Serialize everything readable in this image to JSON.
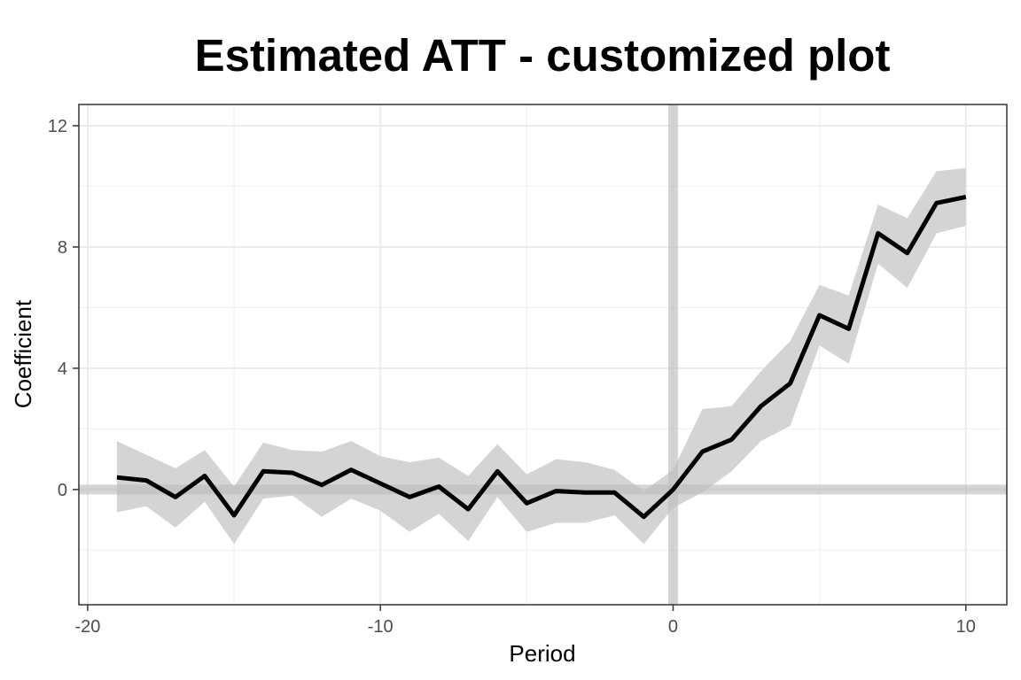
{
  "chart_data": {
    "type": "line",
    "title": "Estimated ATT - customized plot",
    "xlabel": "Period",
    "ylabel": "Coefficient",
    "xlim": [
      -20.3,
      11.4
    ],
    "ylim": [
      -3.8,
      12.7
    ],
    "x_ticks": [
      -20,
      -10,
      0,
      10
    ],
    "x_tick_labels": [
      "-20",
      "-10",
      "0",
      "10"
    ],
    "y_ticks": [
      0,
      4,
      8,
      12
    ],
    "y_tick_labels": [
      "0",
      "4",
      "8",
      "12"
    ],
    "grid": true,
    "reference_lines": {
      "x": 0,
      "y": 0
    },
    "series": [
      {
        "x": [
          -19,
          -18,
          -17,
          -16,
          -15,
          -14,
          -13,
          -12,
          -11,
          -10,
          -9,
          -8,
          -7,
          -6,
          -5,
          -4,
          -3,
          -2,
          -1,
          0,
          1,
          2,
          3,
          4,
          5,
          6,
          7,
          8,
          9,
          10
        ],
        "values": [
          0.4,
          0.3,
          -0.25,
          0.45,
          -0.85,
          0.6,
          0.55,
          0.15,
          0.65,
          0.2,
          -0.25,
          0.1,
          -0.65,
          0.6,
          -0.45,
          -0.05,
          -0.1,
          -0.1,
          -0.9,
          0.0,
          1.25,
          1.65,
          2.75,
          3.5,
          5.75,
          5.3,
          8.45,
          7.8,
          9.45,
          9.65
        ],
        "lower": [
          -0.75,
          -0.55,
          -1.25,
          -0.4,
          -1.8,
          -0.3,
          -0.2,
          -0.9,
          -0.3,
          -0.7,
          -1.4,
          -0.8,
          -1.7,
          -0.25,
          -1.4,
          -1.1,
          -1.1,
          -0.85,
          -1.8,
          -0.6,
          -0.1,
          0.6,
          1.6,
          2.1,
          4.75,
          4.15,
          7.45,
          6.65,
          8.45,
          8.7
        ],
        "upper": [
          1.6,
          1.15,
          0.7,
          1.3,
          0.1,
          1.55,
          1.3,
          1.25,
          1.6,
          1.1,
          0.9,
          1.05,
          0.45,
          1.5,
          0.5,
          1.0,
          0.9,
          0.65,
          -0.05,
          0.65,
          2.65,
          2.75,
          3.9,
          4.9,
          6.75,
          6.4,
          9.4,
          8.95,
          10.5,
          10.6
        ]
      }
    ],
    "colors": {
      "line": "#000000",
      "band": "#d4d4d4",
      "reference": "#bdbdbd",
      "grid_major": "#ebebeb",
      "grid_minor": "#f2f2f2",
      "panel_border": "#333333"
    }
  }
}
